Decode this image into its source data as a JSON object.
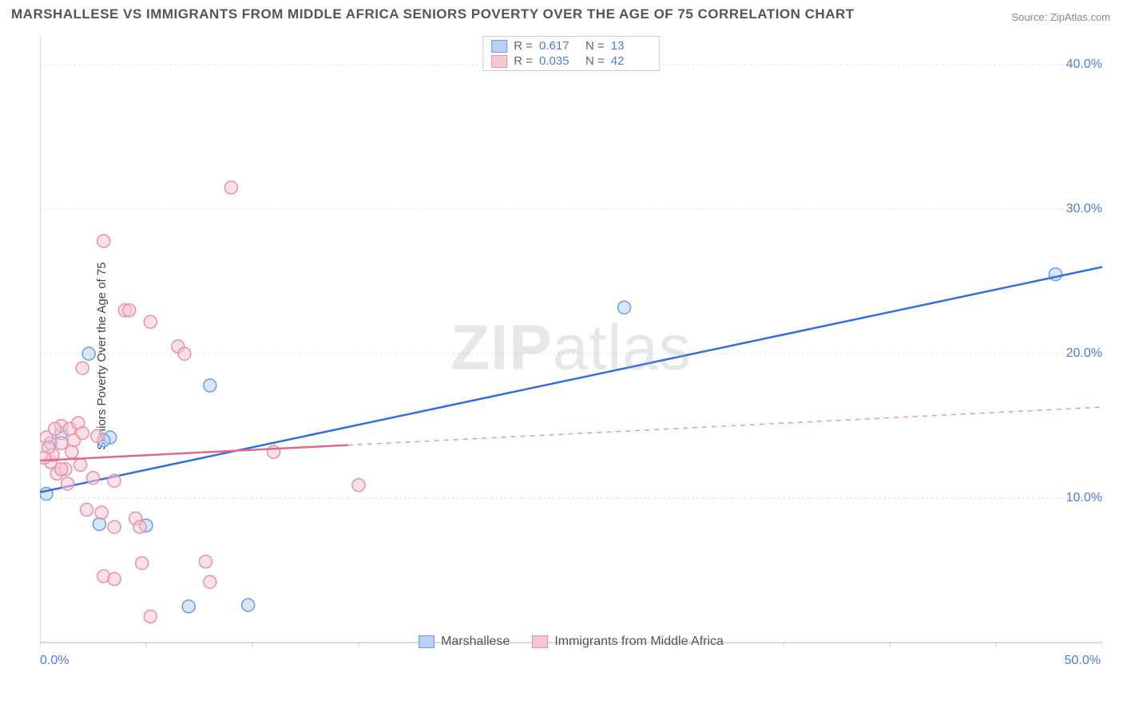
{
  "title": "MARSHALLESE VS IMMIGRANTS FROM MIDDLE AFRICA SENIORS POVERTY OVER THE AGE OF 75 CORRELATION CHART",
  "source": "Source: ZipAtlas.com",
  "watermark_a": "ZIP",
  "watermark_b": "atlas",
  "y_axis_label": "Seniors Poverty Over the Age of 75",
  "chart": {
    "type": "scatter",
    "xlim": [
      0,
      50
    ],
    "ylim": [
      0,
      42
    ],
    "y_ticks": [
      10,
      20,
      30,
      40
    ],
    "y_tick_labels": [
      "10.0%",
      "20.0%",
      "30.0%",
      "40.0%"
    ],
    "x_tick_labels": [
      "0.0%",
      "50.0%"
    ],
    "x_minor_ticks": [
      0,
      5,
      10,
      15,
      20,
      25,
      30,
      35,
      40,
      45,
      50
    ],
    "grid_color": "#e2e2e2",
    "axis_color": "#cfcfcf",
    "tick_label_color": "#4c7ce0",
    "background_color": "#ffffff",
    "marker_radius": 8,
    "marker_opacity": 0.55,
    "series": [
      {
        "name": "Marshallese",
        "color_fill": "#b9d1f3",
        "color_stroke": "#6a9be8",
        "line_color": "#2f6fe0",
        "R": "0.617",
        "N": "13",
        "trend": {
          "x1": 0,
          "y1": 10.4,
          "x2": 50,
          "y2": 26.0,
          "solid_until_x": 50
        },
        "points": [
          [
            0.3,
            10.3
          ],
          [
            2.3,
            20.0
          ],
          [
            2.8,
            8.2
          ],
          [
            3.3,
            14.2
          ],
          [
            8.0,
            17.8
          ],
          [
            5.0,
            8.1
          ],
          [
            7.0,
            2.5
          ],
          [
            9.8,
            2.6
          ],
          [
            27.5,
            23.2
          ],
          [
            47.8,
            25.5
          ],
          [
            0.5,
            13.8
          ],
          [
            1.0,
            14.5
          ],
          [
            3.0,
            14.0
          ]
        ]
      },
      {
        "name": "Immigrants from Middle Africa",
        "color_fill": "#f6c8d4",
        "color_stroke": "#ea8fa8",
        "line_color": "#e06a8a",
        "R": "0.035",
        "N": "42",
        "trend": {
          "x1": 0,
          "y1": 12.6,
          "x2": 50,
          "y2": 16.3,
          "solid_until_x": 14.5
        },
        "points": [
          [
            0.3,
            14.2
          ],
          [
            0.5,
            12.5
          ],
          [
            0.6,
            13.0
          ],
          [
            0.8,
            11.7
          ],
          [
            1.0,
            15.0
          ],
          [
            1.2,
            12.0
          ],
          [
            1.0,
            13.8
          ],
          [
            1.4,
            14.8
          ],
          [
            1.6,
            14.0
          ],
          [
            1.8,
            15.2
          ],
          [
            2.0,
            14.5
          ],
          [
            1.0,
            12.0
          ],
          [
            1.3,
            11.0
          ],
          [
            2.5,
            11.4
          ],
          [
            2.2,
            9.2
          ],
          [
            2.9,
            9.0
          ],
          [
            3.5,
            8.0
          ],
          [
            3.0,
            4.6
          ],
          [
            3.5,
            4.4
          ],
          [
            4.8,
            5.5
          ],
          [
            5.2,
            1.8
          ],
          [
            8.0,
            4.2
          ],
          [
            7.8,
            5.6
          ],
          [
            4.5,
            8.6
          ],
          [
            4.7,
            8.0
          ],
          [
            3.0,
            27.8
          ],
          [
            4.0,
            23.0
          ],
          [
            4.2,
            23.0
          ],
          [
            5.2,
            22.2
          ],
          [
            6.5,
            20.5
          ],
          [
            2.0,
            19.0
          ],
          [
            9.0,
            31.5
          ],
          [
            6.8,
            20.0
          ],
          [
            11.0,
            13.2
          ],
          [
            15.0,
            10.9
          ],
          [
            3.5,
            11.2
          ],
          [
            0.4,
            13.5
          ],
          [
            0.7,
            14.8
          ],
          [
            1.5,
            13.2
          ],
          [
            1.9,
            12.3
          ],
          [
            2.7,
            14.3
          ],
          [
            0.2,
            12.8
          ]
        ]
      }
    ]
  },
  "legend_top": {
    "r_label": "R  =",
    "n_label": "N  ="
  },
  "legend_bottom": {
    "series1": "Marshallese",
    "series2": "Immigrants from Middle Africa"
  }
}
